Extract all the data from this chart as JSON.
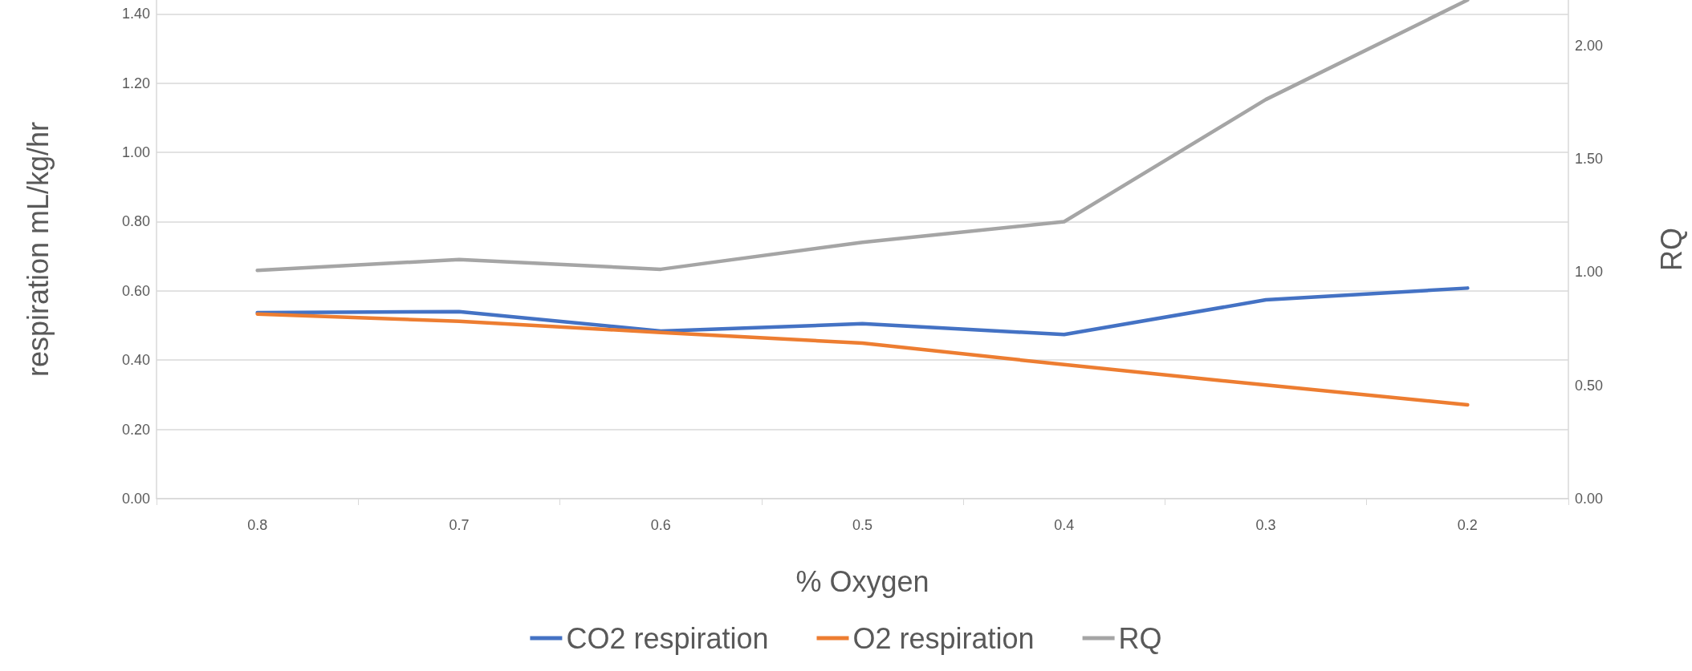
{
  "chart_data": {
    "type": "line",
    "xlabel": "% Oxygen",
    "ylabel": "respiration mL/kg/hr",
    "y2label": "RQ",
    "categories": [
      "0.8",
      "0.7",
      "0.6",
      "0.5",
      "0.4",
      "0.3",
      "0.2"
    ],
    "series": [
      {
        "name": "CO2 respiration",
        "color": "#4472c4",
        "values": [
          0.537,
          0.54,
          0.484,
          0.505,
          0.474,
          0.574,
          0.608
        ]
      },
      {
        "name": "O2 respiration",
        "color": "#ed7d31",
        "values": [
          0.533,
          0.512,
          0.48,
          0.449,
          0.387,
          0.328,
          0.271
        ]
      },
      {
        "name": "RQ",
        "color": "#a5a5a5",
        "axis": "y2",
        "values": [
          1.007,
          1.055,
          1.012,
          1.131,
          1.222,
          1.761,
          2.2
        ]
      }
    ],
    "ylim": [
      0,
      1.44
    ],
    "yticks": [
      {
        "value": 0,
        "label": "0.00"
      },
      {
        "value": 0.2,
        "label": "0.20"
      },
      {
        "value": 0.4,
        "label": "0.40"
      },
      {
        "value": 0.6,
        "label": "0.60"
      },
      {
        "value": 0.8,
        "label": "0.80"
      },
      {
        "value": 1,
        "label": "1.00"
      },
      {
        "value": 1.2,
        "label": "1.20"
      },
      {
        "value": 1.4,
        "label": "1.40"
      }
    ],
    "y2lim": [
      0,
      2.2
    ],
    "y2ticks": [
      {
        "value": 0,
        "label": "0.00"
      },
      {
        "value": 0.5,
        "label": "0.50"
      },
      {
        "value": 1,
        "label": "1.00"
      },
      {
        "value": 1.5,
        "label": "1.50"
      },
      {
        "value": 2,
        "label": "2.00"
      }
    ],
    "grid": "y",
    "legend": "bottom",
    "marker": "none",
    "line_style": "solid"
  }
}
